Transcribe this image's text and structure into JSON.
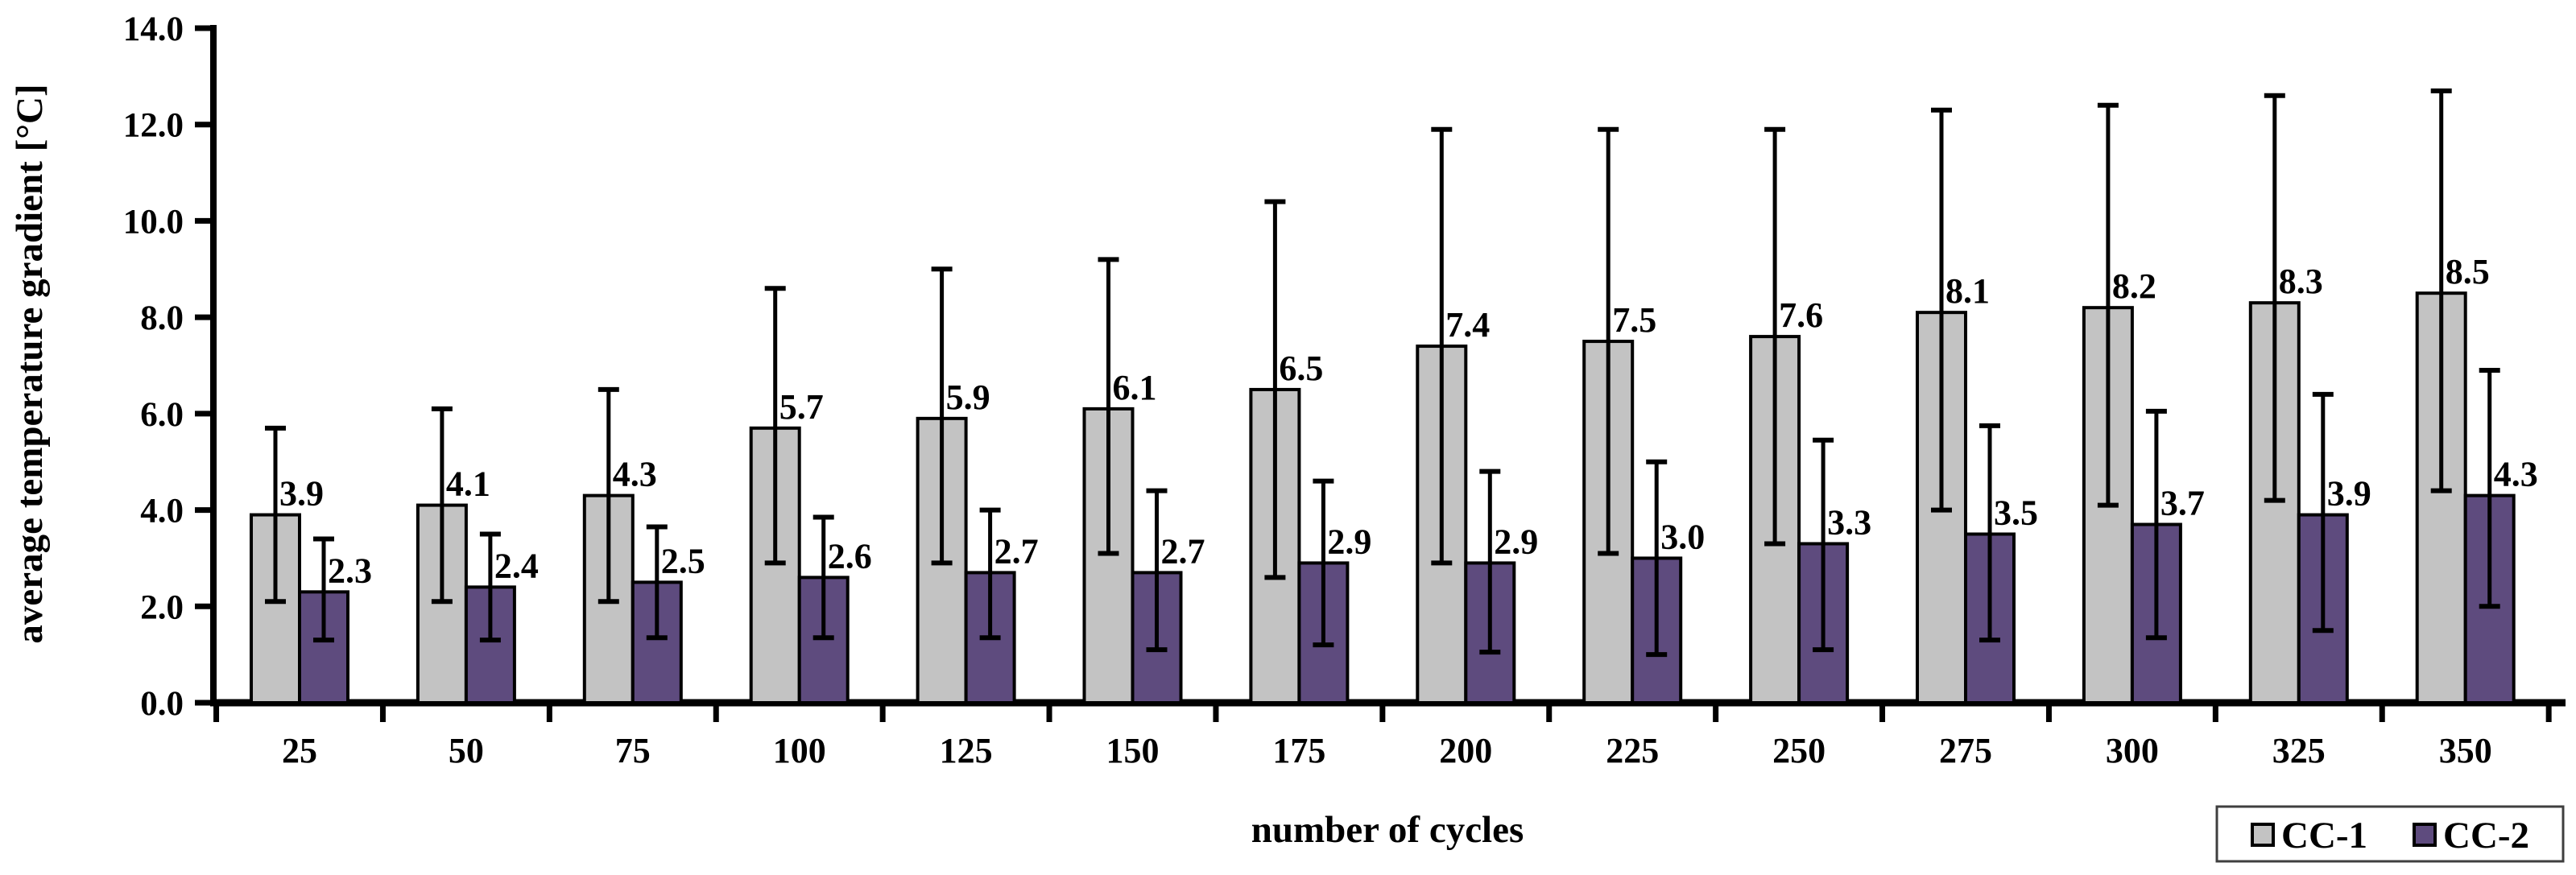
{
  "chart_data": {
    "type": "bar",
    "title": "",
    "xlabel": "number of cycles",
    "ylabel": "average temperature gradient [°C]",
    "ylim": [
      0,
      14
    ],
    "ytick_step": 2,
    "ytick_labels": [
      "0.0",
      "2.0",
      "4.0",
      "6.0",
      "8.0",
      "10.0",
      "12.0",
      "14.0"
    ],
    "categories": [
      "25",
      "50",
      "75",
      "100",
      "125",
      "150",
      "175",
      "200",
      "225",
      "250",
      "275",
      "300",
      "325",
      "350"
    ],
    "series": [
      {
        "name": "CC-1",
        "color": "#c3c3c3",
        "values": [
          3.9,
          4.1,
          4.3,
          5.7,
          5.9,
          6.1,
          6.5,
          7.4,
          7.5,
          7.6,
          8.1,
          8.2,
          8.3,
          8.5
        ],
        "err_low": [
          2.1,
          2.1,
          2.1,
          2.9,
          2.9,
          3.1,
          2.6,
          2.9,
          3.1,
          3.3,
          4.0,
          4.1,
          4.2,
          4.4
        ],
        "err_high": [
          5.7,
          6.1,
          6.5,
          8.6,
          9.0,
          9.2,
          10.4,
          11.9,
          11.9,
          11.9,
          12.3,
          12.4,
          12.6,
          12.7
        ]
      },
      {
        "name": "CC-2",
        "color": "#5e4b7e",
        "values": [
          2.3,
          2.4,
          2.5,
          2.6,
          2.7,
          2.7,
          2.9,
          2.9,
          3.0,
          3.3,
          3.5,
          3.7,
          3.9,
          4.3
        ],
        "err_low": [
          1.3,
          1.3,
          1.35,
          1.35,
          1.35,
          1.1,
          1.2,
          1.05,
          1.0,
          1.1,
          1.3,
          1.35,
          1.5,
          2.0
        ],
        "err_high": [
          3.4,
          3.5,
          3.65,
          3.85,
          4.0,
          4.4,
          4.6,
          4.8,
          5.0,
          5.45,
          5.75,
          6.05,
          6.4,
          6.9
        ]
      }
    ],
    "data_label_format": "one-decimal",
    "grid": false,
    "legend_position": "bottom-right",
    "axis_color": "#000000",
    "bar_outline_color": "#000000",
    "error_bar_color": "#000000",
    "legend_border_color": "#3f3f3f",
    "background_color": "#ffffff"
  }
}
